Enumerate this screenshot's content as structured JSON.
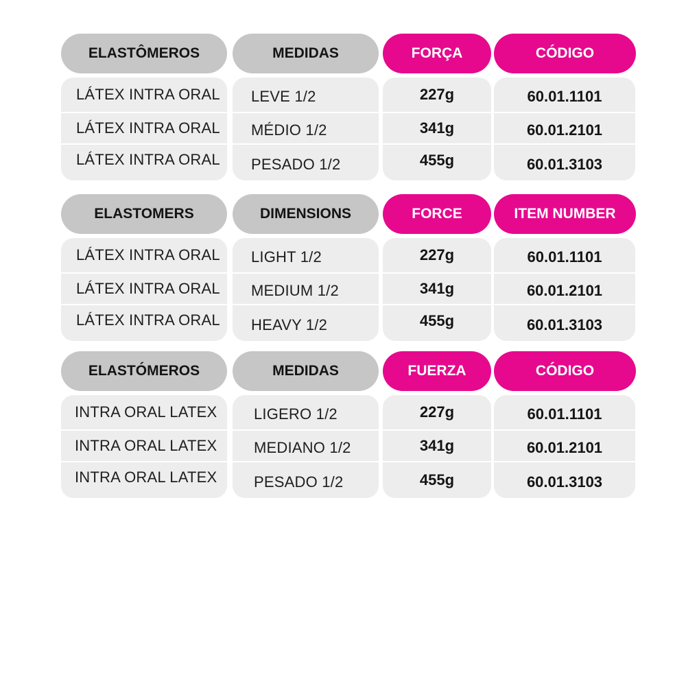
{
  "tables": [
    {
      "headers": [
        "ELASTÔMEROS",
        "MEDIDAS",
        "FORÇA",
        "CÓDIGO"
      ],
      "rows": [
        [
          "LÁTEX INTRA ORAL",
          "LEVE 1/2",
          "227g",
          "60.01.1101"
        ],
        [
          "LÁTEX INTRA ORAL",
          "MÉDIO 1/2",
          "341g",
          "60.01.2101"
        ],
        [
          "LÁTEX INTRA ORAL",
          "PESADO 1/2",
          "455g",
          "60.01.3103"
        ]
      ]
    },
    {
      "headers": [
        "ELASTOMERS",
        "DIMENSIONS",
        "FORCE",
        "ITEM NUMBER"
      ],
      "rows": [
        [
          "LÁTEX INTRA ORAL",
          "LIGHT 1/2",
          "227g",
          "60.01.1101"
        ],
        [
          "LÁTEX INTRA ORAL",
          "MEDIUM 1/2",
          "341g",
          "60.01.2101"
        ],
        [
          "LÁTEX INTRA ORAL",
          "HEAVY 1/2",
          "455g",
          "60.01.3103"
        ]
      ]
    },
    {
      "headers": [
        "ELASTÓMEROS",
        "MEDIDAS",
        "FUERZA",
        "CÓDIGO"
      ],
      "rows": [
        [
          "INTRA ORAL LATEX",
          "LIGERO 1/2",
          "227g",
          "60.01.1101"
        ],
        [
          "INTRA ORAL LATEX",
          "MEDIANO 1/2",
          "341g",
          "60.01.2101"
        ],
        [
          "INTRA ORAL LATEX",
          "PESADO 1/2",
          "455g",
          "60.01.3103"
        ]
      ]
    }
  ],
  "colors": {
    "accent": "#e6098e",
    "header_gray": "#c6c6c6",
    "cell_gray": "#ededed",
    "text": "#141414"
  }
}
